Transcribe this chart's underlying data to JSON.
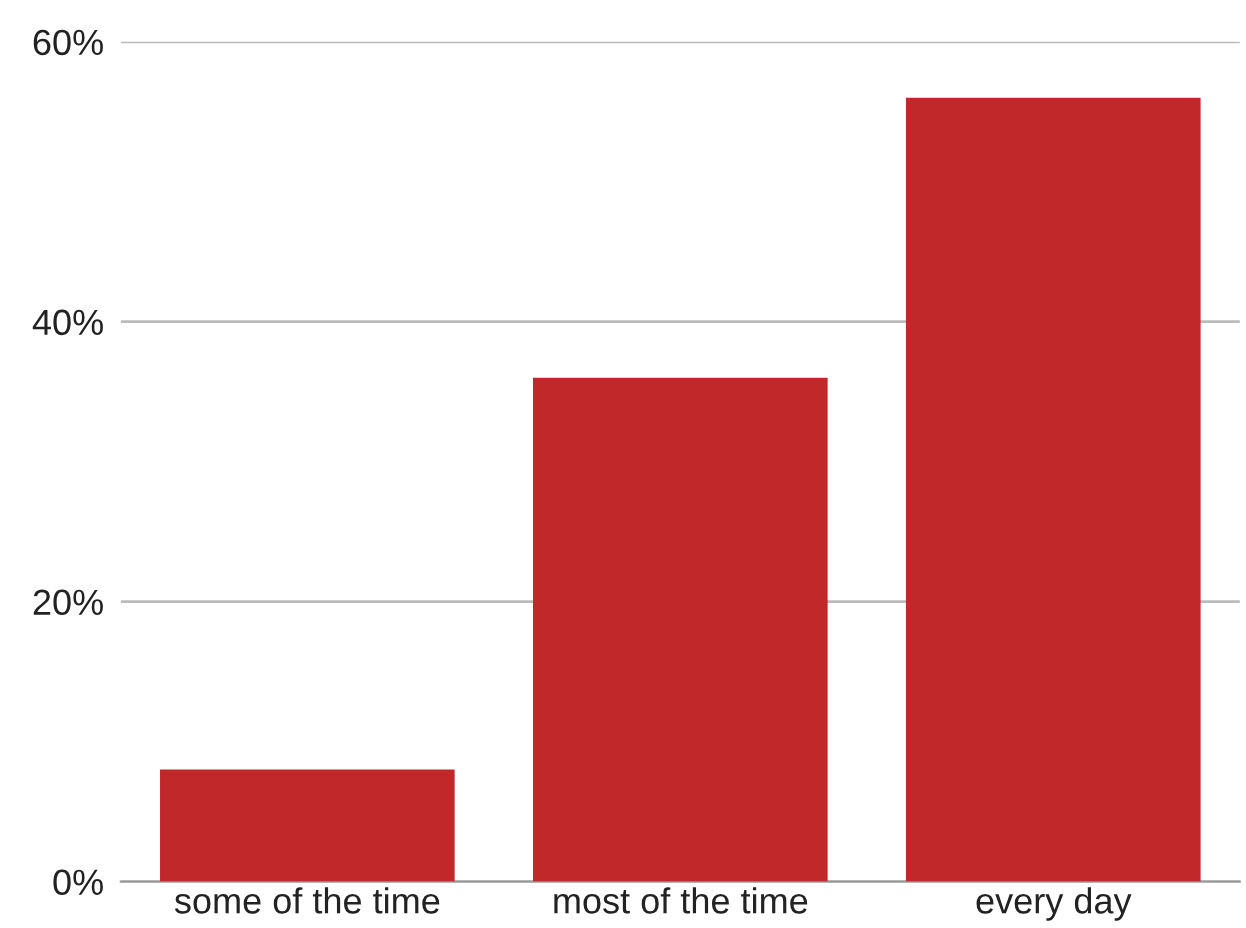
{
  "chart_data": {
    "type": "bar",
    "categories": [
      "some of the time",
      "most of the time",
      "every day"
    ],
    "values": [
      8,
      36,
      56
    ],
    "color": "#c0282a",
    "ylim": [
      0,
      60
    ],
    "yticks": [
      {
        "value": 0,
        "label": "0%"
      },
      {
        "value": 20,
        "label": "20%"
      },
      {
        "value": 40,
        "label": "40%"
      },
      {
        "value": 60,
        "label": "60%"
      }
    ],
    "grid": "y"
  }
}
